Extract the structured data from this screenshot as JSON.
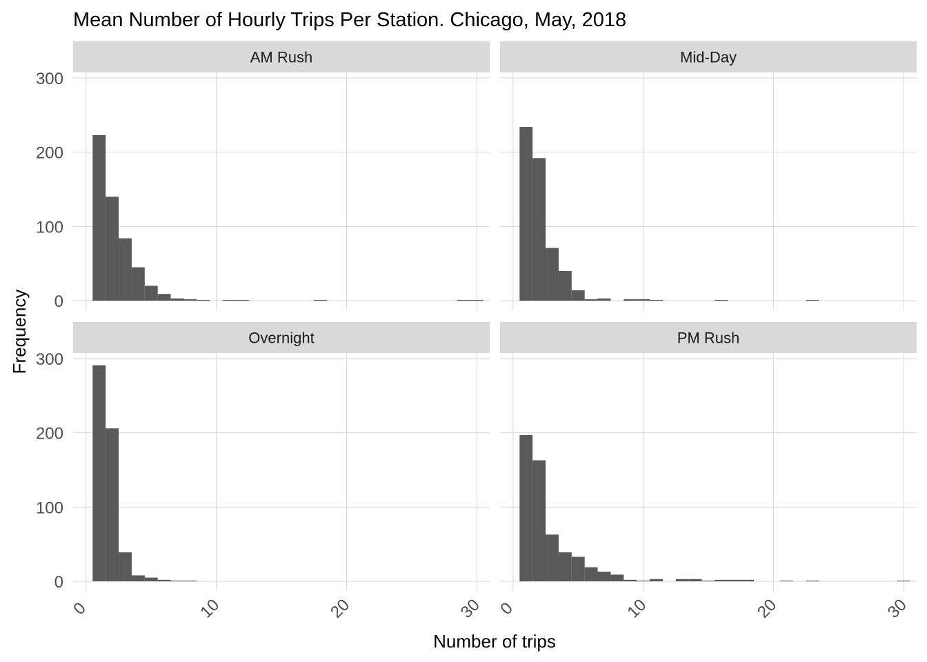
{
  "chart_data": {
    "type": "bar",
    "title": "Mean Number of Hourly Trips Per Station. Chicago, May, 2018",
    "xlabel": "Number of trips",
    "ylabel": "Frequency",
    "xlim": [
      -1,
      31
    ],
    "ylim": [
      0,
      300
    ],
    "x_ticks": [
      0,
      10,
      20,
      30
    ],
    "y_ticks": [
      0,
      100,
      200,
      300
    ],
    "bin_width": 1,
    "grid": true,
    "bar_color": "#595959",
    "strip_color": "#d9d9d9",
    "panels": [
      {
        "name": "AM Rush",
        "bins": [
          {
            "x": 1,
            "count": 223
          },
          {
            "x": 2,
            "count": 140
          },
          {
            "x": 3,
            "count": 84
          },
          {
            "x": 4,
            "count": 45
          },
          {
            "x": 5,
            "count": 20
          },
          {
            "x": 6,
            "count": 9
          },
          {
            "x": 7,
            "count": 3
          },
          {
            "x": 8,
            "count": 2
          },
          {
            "x": 9,
            "count": 1
          },
          {
            "x": 11,
            "count": 1
          },
          {
            "x": 12,
            "count": 1
          },
          {
            "x": 18,
            "count": 1
          },
          {
            "x": 29,
            "count": 1
          },
          {
            "x": 30,
            "count": 1
          }
        ]
      },
      {
        "name": "Mid-Day",
        "bins": [
          {
            "x": 1,
            "count": 234
          },
          {
            "x": 2,
            "count": 192
          },
          {
            "x": 3,
            "count": 71
          },
          {
            "x": 4,
            "count": 40
          },
          {
            "x": 5,
            "count": 14
          },
          {
            "x": 6,
            "count": 2
          },
          {
            "x": 7,
            "count": 3
          },
          {
            "x": 9,
            "count": 2
          },
          {
            "x": 10,
            "count": 2
          },
          {
            "x": 11,
            "count": 1
          },
          {
            "x": 16,
            "count": 1
          },
          {
            "x": 23,
            "count": 1
          }
        ]
      },
      {
        "name": "Overnight",
        "bins": [
          {
            "x": 1,
            "count": 291
          },
          {
            "x": 2,
            "count": 206
          },
          {
            "x": 3,
            "count": 39
          },
          {
            "x": 4,
            "count": 8
          },
          {
            "x": 5,
            "count": 5
          },
          {
            "x": 6,
            "count": 2
          },
          {
            "x": 7,
            "count": 1
          },
          {
            "x": 8,
            "count": 1
          }
        ]
      },
      {
        "name": "PM Rush",
        "bins": [
          {
            "x": 1,
            "count": 197
          },
          {
            "x": 2,
            "count": 163
          },
          {
            "x": 3,
            "count": 63
          },
          {
            "x": 4,
            "count": 39
          },
          {
            "x": 5,
            "count": 33
          },
          {
            "x": 6,
            "count": 19
          },
          {
            "x": 7,
            "count": 13
          },
          {
            "x": 8,
            "count": 9
          },
          {
            "x": 9,
            "count": 2
          },
          {
            "x": 10,
            "count": 1
          },
          {
            "x": 11,
            "count": 3
          },
          {
            "x": 13,
            "count": 3
          },
          {
            "x": 14,
            "count": 3
          },
          {
            "x": 15,
            "count": 1
          },
          {
            "x": 16,
            "count": 2
          },
          {
            "x": 17,
            "count": 2
          },
          {
            "x": 18,
            "count": 2
          },
          {
            "x": 21,
            "count": 1
          },
          {
            "x": 23,
            "count": 1
          },
          {
            "x": 30,
            "count": 1
          }
        ]
      }
    ]
  }
}
